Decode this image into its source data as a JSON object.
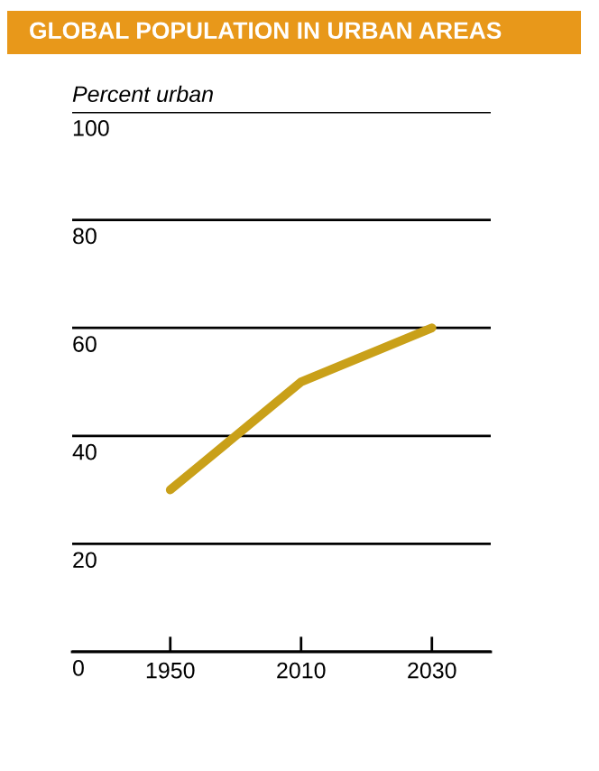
{
  "chart_data": {
    "type": "line",
    "title": "GLOBAL POPULATION IN URBAN AREAS",
    "ylabel": "Percent urban",
    "categories": [
      "1950",
      "2010",
      "2030"
    ],
    "series": [
      {
        "color": "#c9a019",
        "values": [
          30,
          50,
          60
        ]
      }
    ],
    "ylim": [
      0,
      100
    ],
    "yticks": [
      0,
      20,
      40,
      60,
      80,
      100
    ],
    "grid": "y",
    "marker": "none",
    "line_style": "solid"
  }
}
